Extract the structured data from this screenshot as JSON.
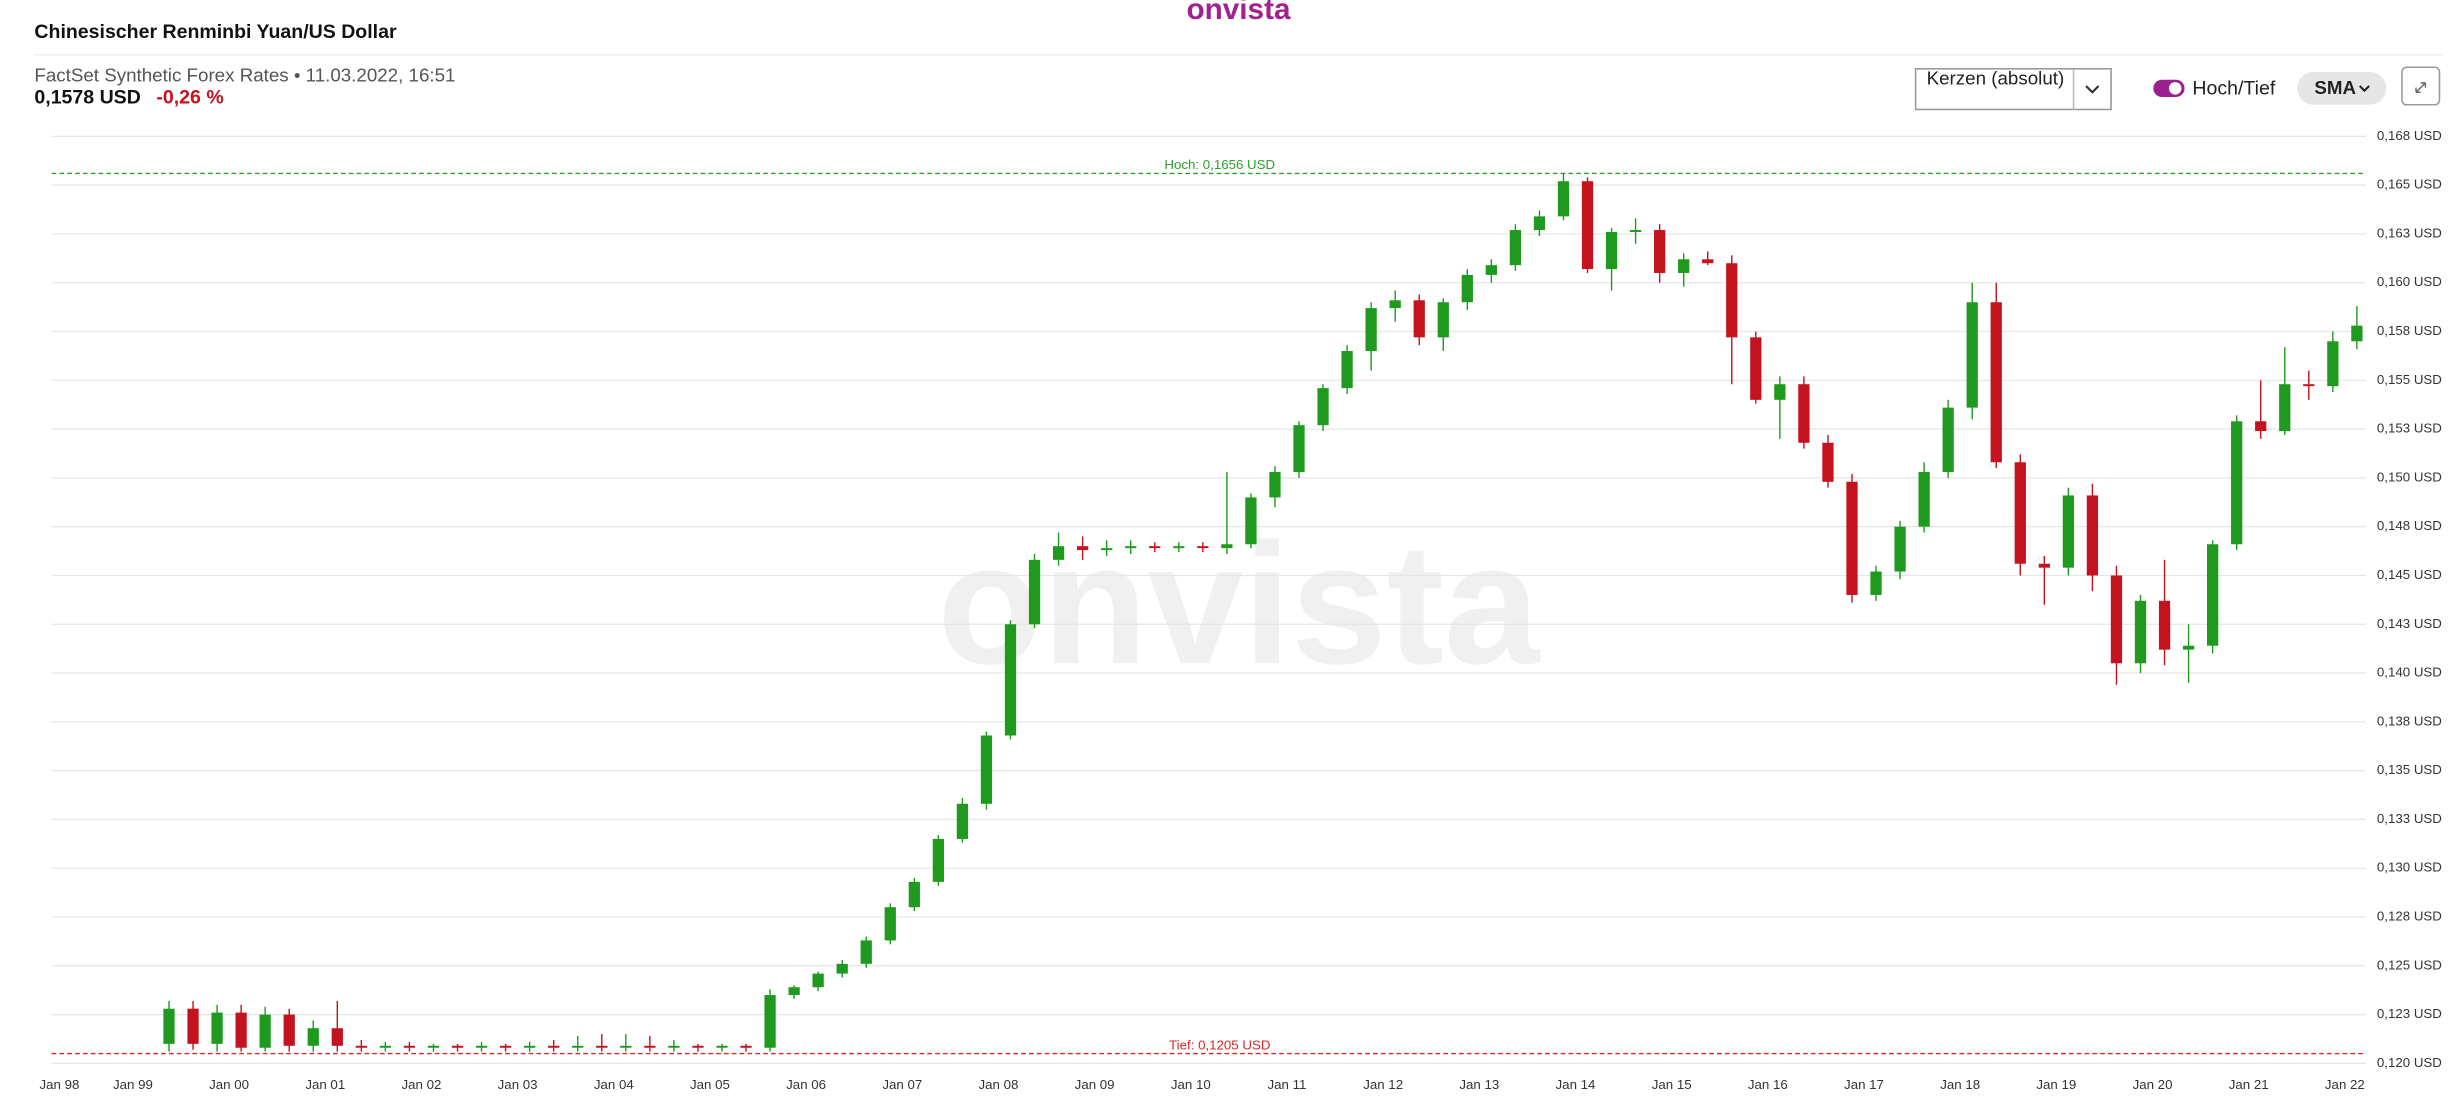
{
  "header": {
    "logo": "onvista",
    "title": "Chinesischer Renminbi Yuan/US Dollar",
    "source": "FactSet Synthetic Forex Rates • 11.03.2022, 16:51",
    "price": "0,1578 USD",
    "change": "-0,26 %"
  },
  "controls": {
    "chart_style": "Kerzen (absolut)",
    "toggle": "Hoch/Tief",
    "indicator": "SMA"
  },
  "watermark": "onvista",
  "chart_data": {
    "type": "candlestick",
    "categories": [
      "Jan 98",
      null,
      null,
      null,
      "Jan 99",
      null,
      null,
      null,
      "Jan 00",
      null,
      null,
      null,
      "Jan 01",
      null,
      null,
      null,
      "Jan 02",
      null,
      null,
      null,
      "Jan 03",
      null,
      null,
      null,
      "Jan 04",
      null,
      null,
      null,
      "Jan 05",
      null,
      null,
      null,
      "Jan 06",
      null,
      null,
      null,
      "Jan 07",
      null,
      null,
      null,
      "Jan 08",
      null,
      null,
      null,
      "Jan 09",
      null,
      null,
      null,
      "Jan 10",
      null,
      null,
      null,
      "Jan 11",
      null,
      null,
      null,
      "Jan 12",
      null,
      null,
      null,
      "Jan 13",
      null,
      null,
      null,
      "Jan 14",
      null,
      null,
      null,
      "Jan 15",
      null,
      null,
      null,
      "Jan 16",
      null,
      null,
      null,
      "Jan 17",
      null,
      null,
      null,
      "Jan 18",
      null,
      null,
      null,
      "Jan 19",
      null,
      null,
      null,
      "Jan 20",
      null,
      null,
      null,
      "Jan 21",
      null,
      null,
      null,
      "Jan 22"
    ],
    "open": [
      null,
      null,
      null,
      null,
      null,
      0.121,
      0.1228,
      0.121,
      0.1226,
      0.1208,
      0.1225,
      0.1209,
      0.1218,
      0.1209,
      0.1208,
      0.1209,
      0.1208,
      0.1209,
      0.1208,
      0.1209,
      0.1208,
      0.1209,
      0.1208,
      0.1209,
      0.1208,
      0.1209,
      0.1208,
      0.1209,
      0.1208,
      0.1209,
      0.1208,
      0.1235,
      0.1239,
      0.1246,
      0.1251,
      0.1263,
      0.128,
      0.1293,
      0.1315,
      0.1333,
      0.1368,
      0.1425,
      0.1458,
      0.1465,
      0.1463,
      0.1464,
      0.1465,
      0.1464,
      0.1465,
      0.1464,
      0.1466,
      0.149,
      0.1503,
      0.1527,
      0.1546,
      0.1565,
      0.1587,
      0.1591,
      0.1572,
      0.159,
      0.1604,
      0.1609,
      0.1627,
      0.1634,
      0.1652,
      0.1607,
      0.1626,
      0.1627,
      0.1605,
      0.1612,
      0.161,
      0.1572,
      0.154,
      0.1548,
      0.1518,
      0.1498,
      0.144,
      0.1452,
      0.1475,
      0.1503,
      0.1536,
      0.159,
      0.1508,
      0.1456,
      0.1454,
      0.1491,
      0.145,
      0.1405,
      0.1437,
      0.1412,
      0.1414,
      0.1466,
      0.1529,
      0.1524,
      0.1548,
      0.1547,
      0.157
    ],
    "high": [
      null,
      null,
      null,
      null,
      null,
      0.1232,
      0.1232,
      0.123,
      0.123,
      0.1229,
      0.1228,
      0.1222,
      0.1232,
      0.1212,
      0.1211,
      0.1211,
      0.121,
      0.121,
      0.1211,
      0.121,
      0.1211,
      0.1212,
      0.1214,
      0.1215,
      0.1215,
      0.1214,
      0.1212,
      0.121,
      0.121,
      0.121,
      0.1238,
      0.124,
      0.1247,
      0.1253,
      0.1265,
      0.1282,
      0.1295,
      0.1317,
      0.1336,
      0.137,
      0.1427,
      0.1461,
      0.1472,
      0.147,
      0.1468,
      0.1468,
      0.1467,
      0.1467,
      0.1467,
      0.1503,
      0.1492,
      0.1506,
      0.1529,
      0.1548,
      0.1568,
      0.159,
      0.1596,
      0.1594,
      0.1592,
      0.1607,
      0.1612,
      0.163,
      0.1637,
      0.1656,
      0.1654,
      0.1628,
      0.1633,
      0.163,
      0.1615,
      0.1616,
      0.1614,
      0.1575,
      0.1552,
      0.1552,
      0.1522,
      0.1502,
      0.1455,
      0.1478,
      0.1508,
      0.154,
      0.16,
      0.16,
      0.1512,
      0.146,
      0.1495,
      0.1497,
      0.1455,
      0.144,
      0.1458,
      0.1425,
      0.1468,
      0.1532,
      0.155,
      0.1567,
      0.1555,
      0.1575,
      0.1588
    ],
    "low": [
      null,
      null,
      null,
      null,
      null,
      0.1206,
      0.1207,
      0.1206,
      0.1206,
      0.1206,
      0.1206,
      0.1206,
      0.1206,
      0.1206,
      0.1206,
      0.1206,
      0.1206,
      0.1206,
      0.1206,
      0.1206,
      0.1206,
      0.1206,
      0.1206,
      0.1206,
      0.1206,
      0.1206,
      0.1206,
      0.1206,
      0.1206,
      0.1206,
      0.1206,
      0.1233,
      0.1237,
      0.1244,
      0.1249,
      0.1261,
      0.1278,
      0.1291,
      0.1313,
      0.133,
      0.1366,
      0.1423,
      0.1455,
      0.1458,
      0.146,
      0.1461,
      0.1462,
      0.1462,
      0.1462,
      0.1461,
      0.1464,
      0.1485,
      0.15,
      0.1524,
      0.1543,
      0.1555,
      0.158,
      0.1568,
      0.1565,
      0.1586,
      0.16,
      0.1606,
      0.1624,
      0.1632,
      0.1605,
      0.1596,
      0.162,
      0.16,
      0.1598,
      0.1609,
      0.1548,
      0.1538,
      0.152,
      0.1515,
      0.1495,
      0.1436,
      0.1437,
      0.1448,
      0.1472,
      0.15,
      0.153,
      0.1505,
      0.145,
      0.1435,
      0.145,
      0.1442,
      0.1394,
      0.14,
      0.1404,
      0.1395,
      0.141,
      0.1463,
      0.152,
      0.1522,
      0.154,
      0.1544,
      0.1566
    ],
    "close": [
      null,
      null,
      null,
      null,
      null,
      0.1228,
      0.121,
      0.1226,
      0.1208,
      0.1225,
      0.1209,
      0.1218,
      0.1209,
      0.1208,
      0.1209,
      0.1208,
      0.1209,
      0.1208,
      0.1209,
      0.1208,
      0.1209,
      0.1208,
      0.1209,
      0.1208,
      0.1209,
      0.1208,
      0.1209,
      0.1208,
      0.1209,
      0.1208,
      0.1235,
      0.1239,
      0.1246,
      0.1251,
      0.1263,
      0.128,
      0.1293,
      0.1315,
      0.1333,
      0.1368,
      0.1425,
      0.1458,
      0.1465,
      0.1463,
      0.1464,
      0.1465,
      0.1464,
      0.1465,
      0.1464,
      0.1466,
      0.149,
      0.1503,
      0.1527,
      0.1546,
      0.1565,
      0.1587,
      0.1591,
      0.1572,
      0.159,
      0.1604,
      0.1609,
      0.1627,
      0.1634,
      0.1652,
      0.1607,
      0.1626,
      0.1627,
      0.1605,
      0.1612,
      0.161,
      0.1572,
      0.154,
      0.1548,
      0.1518,
      0.1498,
      0.144,
      0.1452,
      0.1475,
      0.1503,
      0.1536,
      0.159,
      0.1508,
      0.1456,
      0.1454,
      0.1491,
      0.145,
      0.1405,
      0.1437,
      0.1412,
      0.1414,
      0.1466,
      0.1529,
      0.1524,
      0.1548,
      0.1547,
      0.157,
      0.1578
    ],
    "up_color": "#1f9a1f",
    "down_color": "#c4121f",
    "ylim": [
      0.1195,
      0.1685
    ],
    "yticks": [
      {
        "value": 0.12,
        "label": "0,120 USD"
      },
      {
        "value": 0.1225,
        "label": "0,123 USD"
      },
      {
        "value": 0.125,
        "label": "0,125 USD"
      },
      {
        "value": 0.1275,
        "label": "0,128 USD"
      },
      {
        "value": 0.13,
        "label": "0,130 USD"
      },
      {
        "value": 0.1325,
        "label": "0,133 USD"
      },
      {
        "value": 0.135,
        "label": "0,135 USD"
      },
      {
        "value": 0.1375,
        "label": "0,138 USD"
      },
      {
        "value": 0.14,
        "label": "0,140 USD"
      },
      {
        "value": 0.1425,
        "label": "0,143 USD"
      },
      {
        "value": 0.145,
        "label": "0,145 USD"
      },
      {
        "value": 0.1475,
        "label": "0,148 USD"
      },
      {
        "value": 0.15,
        "label": "0,150 USD"
      },
      {
        "value": 0.1525,
        "label": "0,153 USD"
      },
      {
        "value": 0.155,
        "label": "0,155 USD"
      },
      {
        "value": 0.1575,
        "label": "0,158 USD"
      },
      {
        "value": 0.16,
        "label": "0,160 USD"
      },
      {
        "value": 0.1625,
        "label": "0,163 USD"
      },
      {
        "value": 0.165,
        "label": "0,165 USD"
      },
      {
        "value": 0.1675,
        "label": "0,168 USD"
      }
    ],
    "grid": true,
    "annotations": [
      {
        "value": 0.1656,
        "label": "Hoch: 0,1656 USD",
        "color": "#2ca02c"
      },
      {
        "value": 0.1205,
        "label": "Tief: 0,1205 USD",
        "color": "#d62728"
      }
    ]
  }
}
